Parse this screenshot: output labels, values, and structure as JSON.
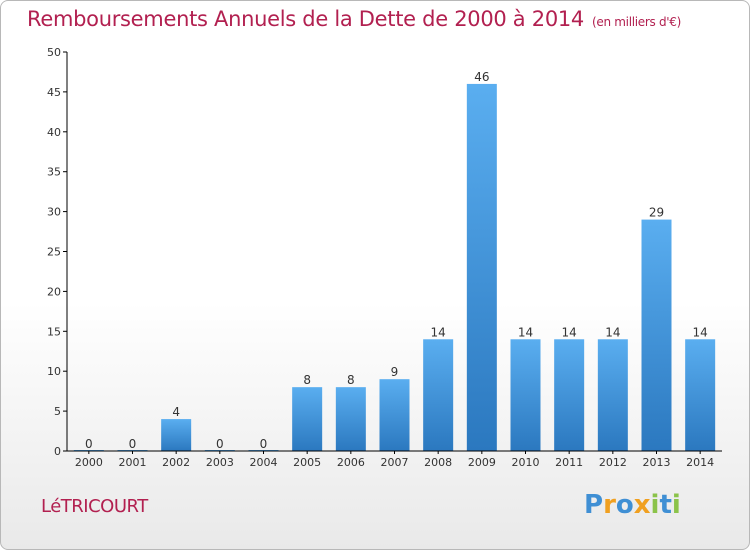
{
  "title": "Remboursements Annuels de la Dette de 2000 à 2014",
  "subtitle": "(en milliers d'€)",
  "commune": "LéTRICOURT",
  "logo": {
    "text": "Proxiti",
    "letters": [
      {
        "ch": "P",
        "color": "#3f8fd4"
      },
      {
        "ch": "r",
        "color": "#f0a020"
      },
      {
        "ch": "o",
        "color": "#3f8fd4"
      },
      {
        "ch": "x",
        "color": "#f0a020"
      },
      {
        "ch": "i",
        "color": "#8bc34a"
      },
      {
        "ch": "t",
        "color": "#3f8fd4"
      },
      {
        "ch": "i",
        "color": "#8bc34a"
      }
    ]
  },
  "colors": {
    "title": "#b22050",
    "bar_light": "#5aaef0",
    "bar_dark": "#2b78bf",
    "axis": "#000000",
    "grid_tick": "#000000"
  },
  "chart_data": {
    "type": "bar",
    "categories": [
      "2000",
      "2001",
      "2002",
      "2003",
      "2004",
      "2005",
      "2006",
      "2007",
      "2008",
      "2009",
      "2010",
      "2011",
      "2012",
      "2013",
      "2014"
    ],
    "values": [
      0,
      0,
      4,
      0,
      0,
      8,
      8,
      9,
      14,
      46,
      14,
      14,
      14,
      29,
      14
    ],
    "ylim": [
      0,
      50
    ],
    "yticks": [
      0,
      5,
      10,
      15,
      20,
      25,
      30,
      35,
      40,
      45,
      50
    ],
    "grid": false,
    "data_labels": true
  }
}
